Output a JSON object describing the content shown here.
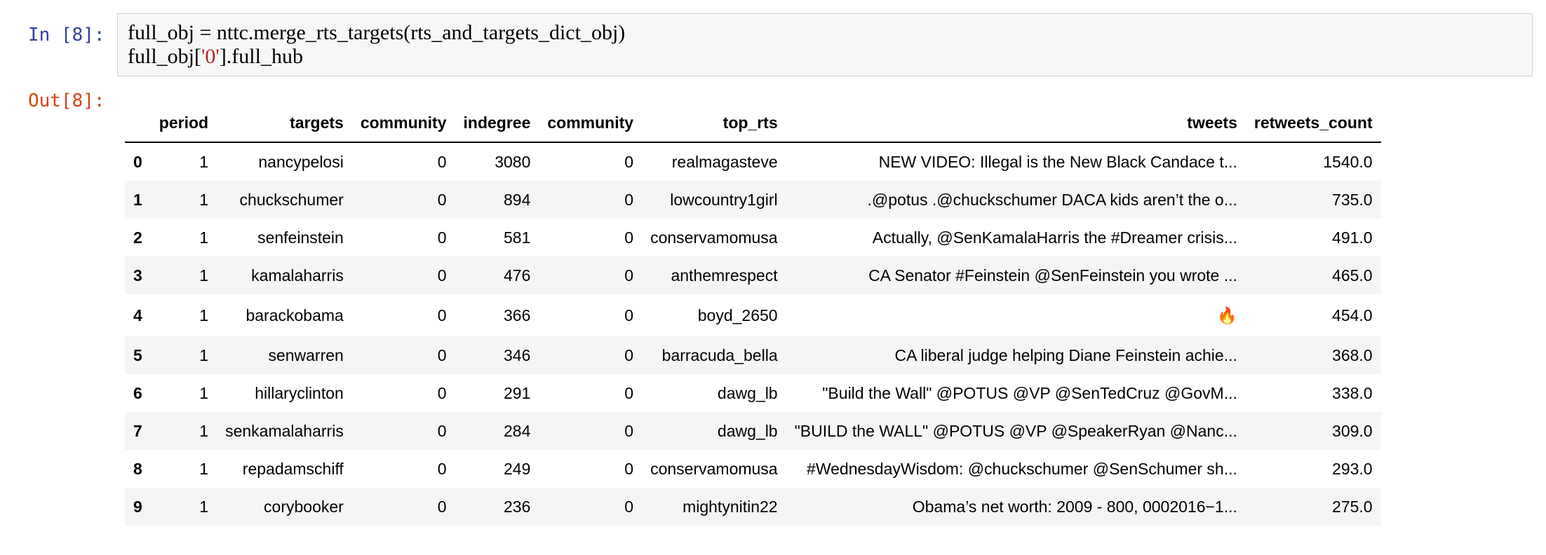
{
  "input_cell": {
    "prompt": "In [8]:",
    "line1": "full_obj = nttc.merge_rts_targets(rts_and_targets_dict_obj)",
    "line2_pre": "full_obj[",
    "line2_str": "'0'",
    "line2_post": "].full_hub"
  },
  "output_cell": {
    "prompt": "Out[8]:"
  },
  "table": {
    "columns": [
      "",
      "period",
      "targets",
      "community",
      "indegree",
      "community",
      "top_rts",
      "tweets",
      "retweets_count"
    ],
    "rows": [
      {
        "index": "0",
        "period": "1",
        "targets": "nancypelosi",
        "community": "0",
        "indegree": "3080",
        "community2": "0",
        "top_rts": "realmagasteve",
        "tweets": "NEW VIDEO: Illegal is the New Black Candace t...",
        "retweets_count": "1540.0"
      },
      {
        "index": "1",
        "period": "1",
        "targets": "chuckschumer",
        "community": "0",
        "indegree": "894",
        "community2": "0",
        "top_rts": "lowcountry1girl",
        "tweets": ".@potus .@chuckschumer DACA kids aren’t the o...",
        "retweets_count": "735.0"
      },
      {
        "index": "2",
        "period": "1",
        "targets": "senfeinstein",
        "community": "0",
        "indegree": "581",
        "community2": "0",
        "top_rts": "conservamomusa",
        "tweets": "Actually, @SenKamalaHarris the #Dreamer crisis...",
        "retweets_count": "491.0"
      },
      {
        "index": "3",
        "period": "1",
        "targets": "kamalaharris",
        "community": "0",
        "indegree": "476",
        "community2": "0",
        "top_rts": "anthemrespect",
        "tweets": "CA Senator #Feinstein @SenFeinstein you wrote ...",
        "retweets_count": "465.0"
      },
      {
        "index": "4",
        "period": "1",
        "targets": "barackobama",
        "community": "0",
        "indegree": "366",
        "community2": "0",
        "top_rts": "boyd_2650",
        "tweets": "🔥",
        "retweets_count": "454.0"
      },
      {
        "index": "5",
        "period": "1",
        "targets": "senwarren",
        "community": "0",
        "indegree": "346",
        "community2": "0",
        "top_rts": "barracuda_bella",
        "tweets": "CA liberal judge helping Diane Feinstein achie...",
        "retweets_count": "368.0"
      },
      {
        "index": "6",
        "period": "1",
        "targets": "hillaryclinton",
        "community": "0",
        "indegree": "291",
        "community2": "0",
        "top_rts": "dawg_lb",
        "tweets": "\"Build the Wall\" @POTUS @VP @SenTedCruz @GovM...",
        "retweets_count": "338.0"
      },
      {
        "index": "7",
        "period": "1",
        "targets": "senkamalaharris",
        "community": "0",
        "indegree": "284",
        "community2": "0",
        "top_rts": "dawg_lb",
        "tweets": "\"BUILD the WALL\" @POTUS @VP @SpeakerRyan @Nanc...",
        "retweets_count": "309.0"
      },
      {
        "index": "8",
        "period": "1",
        "targets": "repadamschiff",
        "community": "0",
        "indegree": "249",
        "community2": "0",
        "top_rts": "conservamomusa",
        "tweets": "#WednesdayWisdom: @chuckschumer @SenSchumer sh...",
        "retweets_count": "293.0"
      },
      {
        "index": "9",
        "period": "1",
        "targets": "corybooker",
        "community": "0",
        "indegree": "236",
        "community2": "0",
        "top_rts": "mightynitin22",
        "tweets": "Obama’s net worth: 2009 - 800, 0002016−1...",
        "retweets_count": "275.0"
      }
    ]
  }
}
